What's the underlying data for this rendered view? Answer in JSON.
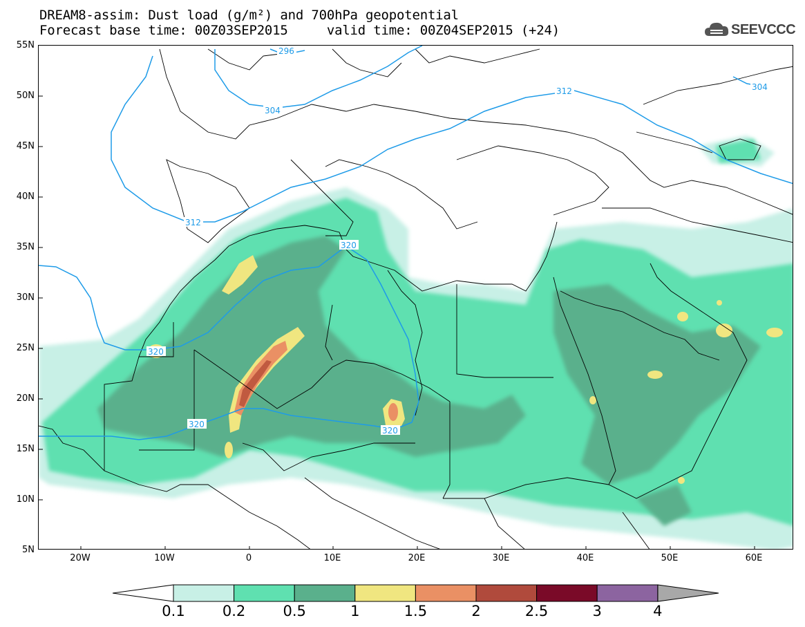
{
  "title": {
    "line1": "DREAM8-assim: Dust load (g/m²) and 700hPa geopotential",
    "line2": "Forecast base time: 00Z03SEP2015     valid time: 00Z04SEP2015 (+24)"
  },
  "logo": {
    "text": "SEEVCCC",
    "icon": "cloud-logo-icon"
  },
  "axes": {
    "lat_labels": [
      "55N",
      "50N",
      "45N",
      "40N",
      "35N",
      "30N",
      "25N",
      "20N",
      "15N",
      "10N",
      "5N"
    ],
    "lon_labels": [
      "20W",
      "10W",
      "0",
      "10E",
      "20E",
      "30E",
      "40E",
      "50E",
      "60E"
    ],
    "lat_range": [
      5,
      55
    ],
    "lon_range": [
      -25,
      65
    ]
  },
  "colorbar": {
    "labels": [
      "0.1",
      "0.2",
      "0.5",
      "1",
      "1.5",
      "2",
      "2.5",
      "3",
      "4"
    ],
    "colors": [
      "#c8f0e6",
      "#5fe0b0",
      "#5ab08c",
      "#f0e680",
      "#ea9064",
      "#b04a3c",
      "#7a0a28",
      "#8c64a0",
      "#a8a8a8"
    ]
  },
  "contour_labels": {
    "c296": "296",
    "c304a": "304",
    "c304b": "304",
    "c312a": "312",
    "c312b": "312",
    "c320a": "320",
    "c320b": "320",
    "c320c": "320",
    "c320d": "320"
  },
  "colors": {
    "contour": "#1e9be8",
    "border": "#000000"
  }
}
